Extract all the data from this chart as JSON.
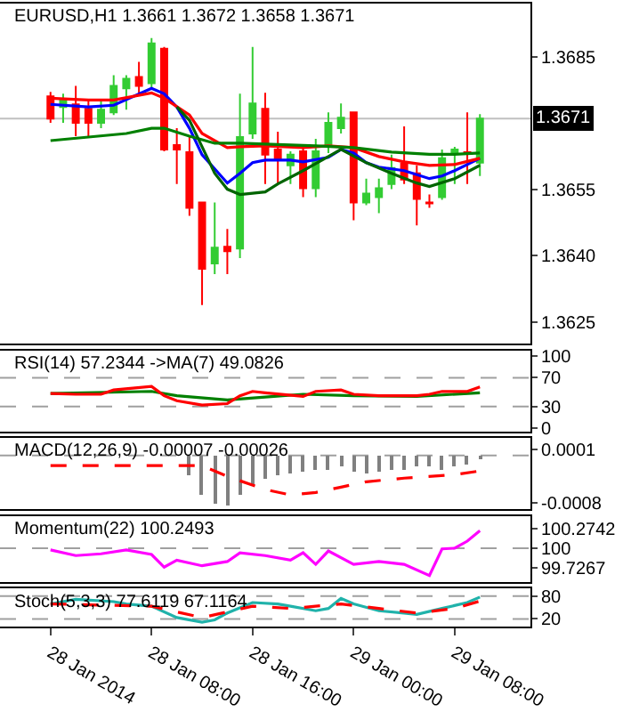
{
  "chart_data": [
    {
      "type": "candlestick",
      "title": "EURUSD,H1 1.3661 1.3672 1.3658 1.3671",
      "x": [
        "2014-01-28T00:00",
        "2014-01-28T01:00",
        "2014-01-28T02:00",
        "2014-01-28T03:00",
        "2014-01-28T04:00",
        "2014-01-28T05:00",
        "2014-01-28T06:00",
        "2014-01-28T07:00",
        "2014-01-28T08:00",
        "2014-01-28T09:00",
        "2014-01-28T10:00",
        "2014-01-28T11:00",
        "2014-01-28T12:00",
        "2014-01-28T13:00",
        "2014-01-28T14:00",
        "2014-01-28T15:00",
        "2014-01-28T16:00",
        "2014-01-28T17:00",
        "2014-01-28T18:00",
        "2014-01-28T19:00",
        "2014-01-28T20:00",
        "2014-01-28T21:00",
        "2014-01-28T22:00",
        "2014-01-28T23:00",
        "2014-01-29T00:00",
        "2014-01-29T01:00",
        "2014-01-29T02:00",
        "2014-01-29T03:00",
        "2014-01-29T04:00",
        "2014-01-29T05:00",
        "2014-01-29T06:00",
        "2014-01-29T07:00",
        "2014-01-29T08:00",
        "2014-01-29T09:00",
        "2014-01-29T10:00"
      ],
      "ohlc": [
        [
          1.3676,
          1.3677,
          1.367,
          1.3671
        ],
        [
          1.36736,
          1.36766,
          1.367,
          1.36754
        ],
        [
          1.36742,
          1.36784,
          1.3667,
          1.367
        ],
        [
          1.36732,
          1.36754,
          1.36668,
          1.367
        ],
        [
          1.367,
          1.36754,
          1.36688,
          1.3673
        ],
        [
          1.36724,
          1.36808,
          1.36718,
          1.36784
        ],
        [
          1.36778,
          1.36808,
          1.3673,
          1.368
        ],
        [
          1.36804,
          1.36838,
          1.36766,
          1.36784
        ],
        [
          1.3679,
          1.36892,
          1.36778,
          1.3688
        ],
        [
          1.36868,
          1.36872,
          1.36636,
          1.3664
        ],
        [
          1.3665,
          1.36688,
          1.36562,
          1.3664
        ],
        [
          1.36634,
          1.3667,
          1.3649,
          1.36508
        ],
        [
          1.3652,
          1.3652,
          1.36288,
          1.3637
        ],
        [
          1.36382,
          1.3652,
          1.36358,
          1.36418
        ],
        [
          1.3642,
          1.3646,
          1.36358,
          1.3641
        ],
        [
          1.36416,
          1.36766,
          1.36394,
          1.36668
        ],
        [
          1.36676,
          1.36872,
          1.36664,
          1.36744
        ],
        [
          1.36732,
          1.36768,
          1.36562,
          1.36628
        ],
        [
          1.3664,
          1.3668,
          1.36562,
          1.36616
        ],
        [
          1.36604,
          1.36636,
          1.36562,
          1.36628
        ],
        [
          1.36636,
          1.36646,
          1.36532,
          1.36552
        ],
        [
          1.36552,
          1.36664,
          1.36532,
          1.36636
        ],
        [
          1.36648,
          1.36724,
          1.36632,
          1.367
        ],
        [
          1.36688,
          1.36744,
          1.36676,
          1.36712
        ],
        [
          1.36724,
          1.36724,
          1.3648,
          1.3652
        ],
        [
          1.3652,
          1.36574,
          1.36514,
          1.3654
        ],
        [
          1.36532,
          1.36574,
          1.36496,
          1.36552
        ],
        [
          1.36562,
          1.36628,
          1.3655,
          1.36598
        ],
        [
          1.36608,
          1.36692,
          1.36562,
          1.36572
        ],
        [
          1.36586,
          1.36604,
          1.36468,
          1.36528
        ],
        [
          1.3652,
          1.36538,
          1.36508,
          1.36518
        ],
        [
          1.36532,
          1.3664,
          1.36526,
          1.3662
        ],
        [
          1.3663,
          1.36646,
          1.36562,
          1.3664
        ],
        [
          1.36634,
          1.36724,
          1.36562,
          1.3663
        ],
        [
          1.3661,
          1.3672,
          1.3658,
          1.3671
        ]
      ],
      "colors": [
        "#ff0000",
        "#33cc33",
        "#ff0000",
        "#ff0000",
        "#33cc33",
        "#33cc33",
        "#33cc33",
        "#ff0000",
        "#33cc33",
        "#ff0000",
        "#ff0000",
        "#ff0000",
        "#ff0000",
        "#33cc33",
        "#ff0000",
        "#33cc33",
        "#33cc33",
        "#ff0000",
        "#ff0000",
        "#33cc33",
        "#ff0000",
        "#33cc33",
        "#33cc33",
        "#33cc33",
        "#ff0000",
        "#33cc33",
        "#33cc33",
        "#33cc33",
        "#ff0000",
        "#ff0000",
        "#ff0000",
        "#33cc33",
        "#33cc33",
        "#ff0000",
        "#33cc33"
      ],
      "series": [
        {
          "type": "line",
          "color": "#0000ff",
          "x": [
            "2014-01-28T00:00",
            "2014-01-28T03:00",
            "2014-01-28T05:00",
            "2014-01-28T08:00",
            "2014-01-28T09:00",
            "2014-01-28T10:00",
            "2014-01-28T11:00",
            "2014-01-28T12:00",
            "2014-01-28T14:00",
            "2014-01-28T15:00",
            "2014-01-28T16:00",
            "2014-01-28T17:00",
            "2014-01-28T19:00",
            "2014-01-28T20:00",
            "2014-01-28T22:00",
            "2014-01-28T23:00",
            "2014-01-29T00:00",
            "2014-01-29T01:00",
            "2014-01-29T02:00",
            "2014-01-29T04:00",
            "2014-01-29T06:00",
            "2014-01-29T07:00",
            "2014-01-29T08:00",
            "2014-01-29T10:00"
          ],
          "values": [
            1.36742,
            1.36736,
            1.3674,
            1.36778,
            1.36766,
            1.36736,
            1.36688,
            1.36628,
            1.36564,
            1.36586,
            1.3661,
            1.36616,
            1.36616,
            1.36612,
            1.36622,
            1.3664,
            1.36632,
            1.3661,
            1.366,
            1.36592,
            1.36574,
            1.3658,
            1.36592,
            1.3662
          ]
        },
        {
          "type": "line",
          "color": "#ff0000",
          "x": [
            "2014-01-28T00:00",
            "2014-01-28T03:00",
            "2014-01-28T05:00",
            "2014-01-28T08:00",
            "2014-01-28T09:00",
            "2014-01-28T11:00",
            "2014-01-28T12:00",
            "2014-01-28T14:00",
            "2014-01-28T15:00",
            "2014-01-28T17:00",
            "2014-01-28T20:00",
            "2014-01-28T22:00",
            "2014-01-29T00:00",
            "2014-01-29T02:00",
            "2014-01-29T04:00",
            "2014-01-29T06:00",
            "2014-01-29T08:00",
            "2014-01-29T10:00"
          ],
          "values": [
            1.36756,
            1.36752,
            1.36752,
            1.36768,
            1.36756,
            1.36718,
            1.36676,
            1.36644,
            1.36646,
            1.36648,
            1.36644,
            1.36648,
            1.36644,
            1.36624,
            1.36612,
            1.36604,
            1.36606,
            1.3662
          ]
        },
        {
          "type": "line",
          "color": "#008000",
          "x": [
            "2014-01-28T00:00",
            "2014-01-28T03:00",
            "2014-01-28T06:00",
            "2014-01-28T08:00",
            "2014-01-28T09:00",
            "2014-01-28T11:00",
            "2014-01-28T13:00",
            "2014-01-28T15:00",
            "2014-01-28T18:00",
            "2014-01-28T21:00",
            "2014-01-29T00:00",
            "2014-01-29T03:00",
            "2014-01-29T06:00",
            "2014-01-29T08:00",
            "2014-01-29T10:00"
          ],
          "values": [
            1.3666,
            1.36668,
            1.36676,
            1.36688,
            1.36688,
            1.3667,
            1.36654,
            1.36654,
            1.36651,
            1.36648,
            1.36644,
            1.36634,
            1.36629,
            1.36629,
            1.36632
          ]
        },
        {
          "type": "line",
          "color": "#006400",
          "x": [
            "2014-01-28T10:00",
            "2014-01-28T11:00",
            "2014-01-28T12:00",
            "2014-01-28T13:00",
            "2014-01-28T14:00",
            "2014-01-28T15:00",
            "2014-01-28T17:00",
            "2014-01-28T18:00",
            "2014-01-28T20:00",
            "2014-01-28T22:00",
            "2014-01-28T23:00",
            "2014-01-29T01:00",
            "2014-01-29T03:00",
            "2014-01-29T05:00",
            "2014-01-29T06:00",
            "2014-01-29T08:00",
            "2014-01-29T10:00"
          ],
          "values": [
            1.36736,
            1.36706,
            1.36646,
            1.36586,
            1.3655,
            1.36538,
            1.36544,
            1.36562,
            1.36592,
            1.36624,
            1.3664,
            1.3661,
            1.36586,
            1.36564,
            1.36556,
            1.36574,
            1.36604
          ]
        }
      ],
      "ref_lines": [
        {
          "axis": "y",
          "value": 1.3671,
          "label": "1.3671",
          "color": "#c0c0c0"
        }
      ],
      "xlim": [
        "2014-01-27T20:00",
        "2014-01-29T14:00"
      ],
      "ylim": [
        1.362,
        1.3697
      ],
      "yticks": [
        1.3685,
        1.3655,
        {
          "value": 1.364,
          "label": "1.3640"
        },
        1.3625
      ],
      "tick_labels": "y"
    },
    {
      "type": "line",
      "title": "RSI(14) 57.2344 ->MA(7) 49.0826",
      "series": [
        {
          "color": "#008000",
          "x": [
            "2014-01-28T00:00",
            "2014-01-28T08:00",
            "2014-01-28T10:00",
            "2014-01-28T14:00",
            "2014-01-28T17:00",
            "2014-01-28T20:00",
            "2014-01-29T00:00",
            "2014-01-29T05:00",
            "2014-01-29T10:00"
          ],
          "values": [
            48,
            51,
            45,
            39,
            43,
            47,
            45,
            44,
            49.0826
          ]
        },
        {
          "color": "#ff0000",
          "x": [
            "2014-01-28T00:00",
            "2014-01-28T02:00",
            "2014-01-28T04:00",
            "2014-01-28T05:00",
            "2014-01-28T08:00",
            "2014-01-28T09:00",
            "2014-01-28T10:00",
            "2014-01-28T12:00",
            "2014-01-28T14:00",
            "2014-01-28T15:00",
            "2014-01-28T16:00",
            "2014-01-28T17:00",
            "2014-01-28T20:00",
            "2014-01-28T21:00",
            "2014-01-28T23:00",
            "2014-01-29T00:00",
            "2014-01-29T02:00",
            "2014-01-29T05:00",
            "2014-01-29T06:00",
            "2014-01-29T07:00",
            "2014-01-29T09:00",
            "2014-01-29T10:00"
          ],
          "values": [
            48,
            47,
            47,
            53,
            58,
            45,
            38,
            32,
            34,
            45,
            51,
            49,
            44,
            51,
            53,
            47,
            45,
            45,
            47,
            51,
            51,
            57.2344
          ]
        }
      ],
      "ref_lines": [
        {
          "axis": "y",
          "value": 70,
          "color": "#a0a0a0",
          "line_style": "dashed"
        },
        {
          "axis": "y",
          "value": 30,
          "color": "#a0a0a0",
          "line_style": "dashed"
        }
      ],
      "xlim": [
        "2014-01-27T20:00",
        "2014-01-29T14:00"
      ],
      "ylim": [
        -5,
        108
      ],
      "yticks": [
        100,
        70,
        30,
        0
      ],
      "tick_labels": "y"
    },
    {
      "type": "bar",
      "title": "MACD(12,26,9) -0.00007 -0.00026",
      "series": [
        {
          "type": "bar",
          "color": "#808080",
          "x": [
            "2014-01-28T11:00",
            "2014-01-28T12:00",
            "2014-01-28T13:00",
            "2014-01-28T14:00",
            "2014-01-28T15:00",
            "2014-01-28T16:00",
            "2014-01-28T17:00",
            "2014-01-28T18:00",
            "2014-01-28T19:00",
            "2014-01-28T20:00",
            "2014-01-28T21:00",
            "2014-01-28T22:00",
            "2014-01-28T23:00",
            "2014-01-29T00:00",
            "2014-01-29T01:00",
            "2014-01-29T02:00",
            "2014-01-29T03:00",
            "2014-01-29T04:00",
            "2014-01-29T05:00",
            "2014-01-29T06:00",
            "2014-01-29T07:00",
            "2014-01-29T08:00",
            "2014-01-29T09:00",
            "2014-01-29T10:00"
          ],
          "values": [
            -0.00035,
            -0.00066,
            -0.00082,
            -0.00085,
            -0.00066,
            -0.00048,
            -0.0004,
            -0.00035,
            -0.0003,
            -0.00028,
            -0.00026,
            -0.00026,
            -0.0002,
            -0.00028,
            -0.0003,
            -0.00028,
            -0.00026,
            -0.00026,
            -0.0002,
            -0.0002,
            -0.00026,
            -0.00018,
            -0.00015,
            -7e-05
          ]
        },
        {
          "type": "line",
          "color": "#ff0000",
          "line_style": "dashed",
          "x": [
            "2014-01-28T00:00",
            "2014-01-28T12:00",
            "2014-01-28T14:00",
            "2014-01-28T17:00",
            "2014-01-28T19:00",
            "2014-01-28T21:00",
            "2014-01-28T23:00",
            "2014-01-29T01:00",
            "2014-01-29T04:00",
            "2014-01-29T08:00",
            "2014-01-29T10:00"
          ],
          "values": [
            -0.00017,
            -0.00017,
            -0.00035,
            -0.00057,
            -0.00066,
            -0.00062,
            -0.00053,
            -0.00044,
            -0.00038,
            -0.00032,
            -0.00026
          ]
        }
      ],
      "ref_lines": [
        {
          "axis": "y",
          "value": 0,
          "color": "#a0a0a0",
          "line_style": "dashed"
        }
      ],
      "xlim": [
        "2014-01-27T20:00",
        "2014-01-29T14:00"
      ],
      "ylim": [
        -0.0009,
        0.00029
      ],
      "yticks": [
        0.0001,
        -0.0008
      ],
      "tick_labels": "y"
    },
    {
      "type": "line",
      "title": "Momentum(22) 100.2493",
      "series": [
        {
          "color": "#ff00ff",
          "x": [
            "2014-01-28T00:00",
            "2014-01-28T02:00",
            "2014-01-28T04:00",
            "2014-01-28T06:00",
            "2014-01-28T08:00",
            "2014-01-28T09:00",
            "2014-01-28T10:00",
            "2014-01-28T12:00",
            "2014-01-28T14:00",
            "2014-01-28T15:00",
            "2014-01-28T17:00",
            "2014-01-28T19:00",
            "2014-01-28T20:00",
            "2014-01-28T21:00",
            "2014-01-28T22:00",
            "2014-01-29T00:00",
            "2014-01-29T02:00",
            "2014-01-29T04:00",
            "2014-01-29T06:00",
            "2014-01-29T07:00",
            "2014-01-29T08:00",
            "2014-01-29T09:00",
            "2014-01-29T10:00"
          ],
          "values": [
            99.976,
            99.895,
            99.92,
            99.976,
            99.91,
            99.73,
            99.83,
            99.75,
            99.81,
            99.935,
            99.895,
            99.83,
            99.935,
            99.77,
            99.96,
            99.77,
            99.81,
            99.77,
            99.61,
            99.99,
            100.0,
            100.1,
            100.2493
          ]
        }
      ],
      "ref_lines": [
        {
          "axis": "y",
          "value": 100,
          "color": "#a0a0a0",
          "line_style": "dashed"
        }
      ],
      "xlim": [
        "2014-01-27T20:00",
        "2014-01-29T14:00"
      ],
      "ylim": [
        99.52,
        100.46
      ],
      "yticks": [
        100.2742,
        100,
        99.7267
      ],
      "tick_labels": "y"
    },
    {
      "type": "line",
      "title": "Stoch(5,3,3) 77.6119 67.1164",
      "series": [
        {
          "color": "#20b2aa",
          "x": [
            "2014-01-28T00:00",
            "2014-01-28T02:00",
            "2014-01-28T05:00",
            "2014-01-28T06:00",
            "2014-01-28T08:00",
            "2014-01-28T10:00",
            "2014-01-28T12:00",
            "2014-01-28T13:00",
            "2014-01-28T14:00",
            "2014-01-28T16:00",
            "2014-01-28T18:00",
            "2014-01-28T19:00",
            "2014-01-28T21:00",
            "2014-01-28T22:00",
            "2014-01-28T23:00",
            "2014-01-29T00:00",
            "2014-01-29T02:00",
            "2014-01-29T04:00",
            "2014-01-29T05:00",
            "2014-01-29T07:00",
            "2014-01-29T09:00",
            "2014-01-29T10:00"
          ],
          "values": [
            59.6,
            71.6,
            65.6,
            59.6,
            53.6,
            23.6,
            11.6,
            17.6,
            35.6,
            63.2,
            59.6,
            53.6,
            41.6,
            47.6,
            74,
            59.6,
            41.6,
            35.6,
            32,
            47.6,
            63.2,
            77.6119
          ]
        },
        {
          "color": "#ff0000",
          "line_style": "dashed",
          "x": [
            "2014-01-28T00:00",
            "2014-01-28T08:00",
            "2014-01-28T12:00",
            "2014-01-28T16:00",
            "2014-01-28T19:00",
            "2014-01-28T23:00",
            "2014-01-29T02:00",
            "2014-01-29T05:00",
            "2014-01-29T08:00",
            "2014-01-29T10:00"
          ],
          "values": [
            59.6,
            53.6,
            23.6,
            53.6,
            47.6,
            59.6,
            47.6,
            35.6,
            47.6,
            67.1164
          ]
        }
      ],
      "ref_lines": [
        {
          "axis": "y",
          "value": 80,
          "color": "#a0a0a0",
          "line_style": "dashed"
        },
        {
          "axis": "y",
          "value": 20,
          "color": "#a0a0a0",
          "line_style": "dashed"
        }
      ],
      "xlim": [
        "2014-01-27T20:00",
        "2014-01-29T14:00"
      ],
      "ylim": [
        0,
        100
      ],
      "yticks": [
        80,
        20
      ],
      "xticks": [
        {
          "value": "2014-01-28T00:00",
          "label": "28 Jan 2014"
        },
        {
          "value": "2014-01-28T08:00",
          "label": "28 Jan 08:00"
        },
        {
          "value": "2014-01-28T16:00",
          "label": "28 Jan 16:00"
        },
        {
          "value": "2014-01-29T00:00",
          "label": "29 Jan 00:00"
        },
        {
          "value": "2014-01-29T08:00",
          "label": "29 Jan 08:00"
        }
      ]
    }
  ]
}
